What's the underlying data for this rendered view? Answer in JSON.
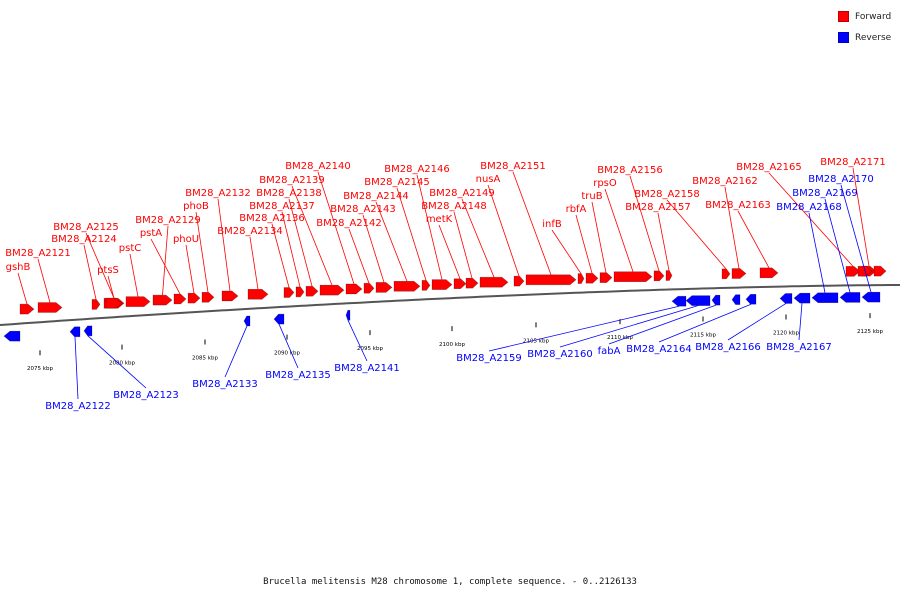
{
  "legend": {
    "items": [
      {
        "label": "Forward",
        "color": "#ff0000"
      },
      {
        "label": "Reverse",
        "color": "#0000ff"
      }
    ]
  },
  "caption": "Brucella melitensis M28 chromosome 1, complete sequence. - 0..2126133",
  "colors": {
    "forward": "#ff0000",
    "reverse": "#0000ff",
    "backbone": "#555555"
  },
  "ticks": [
    "2075 kbp",
    "2080 kbp",
    "2085 kbp",
    "2090 kbp",
    "2095 kbp",
    "2100 kbp",
    "2105 kbp",
    "2110 kbp",
    "2115 kbp",
    "2120 kbp",
    "2125 kbp"
  ],
  "forward_labels": [
    "gshB",
    "BM28_A2121",
    "BM28_A2124",
    "BM28_A2125",
    "ptsS",
    "pstC",
    "BM28_A2129",
    "pstA",
    "phoU",
    "phoB",
    "BM28_A2132",
    "BM28_A2134",
    "BM28_A2136",
    "BM28_A2137",
    "BM28_A2138",
    "BM28_A2139",
    "BM28_A2140",
    "BM28_A2142",
    "BM28_A2143",
    "BM28_A2144",
    "BM28_A2145",
    "BM28_A2146",
    "metK",
    "BM28_A2148",
    "BM28_A2149",
    "nusA",
    "BM28_A2151",
    "infB",
    "rbfA",
    "truB",
    "rpsO",
    "BM28_A2156",
    "BM28_A2157",
    "BM28_A2158",
    "BM28_A2162",
    "BM28_A2163",
    "BM28_A2165",
    "BM28_A2171"
  ],
  "reverse_labels": [
    "BM28_A2122",
    "BM28_A2123",
    "BM28_A2133",
    "BM28_A2135",
    "BM28_A2141",
    "BM28_A2159",
    "BM28_A2160",
    "fabA",
    "BM28_A2164",
    "BM28_A2166",
    "BM28_A2167",
    "BM28_A2168",
    "BM28_A2169",
    "BM28_A2170"
  ]
}
